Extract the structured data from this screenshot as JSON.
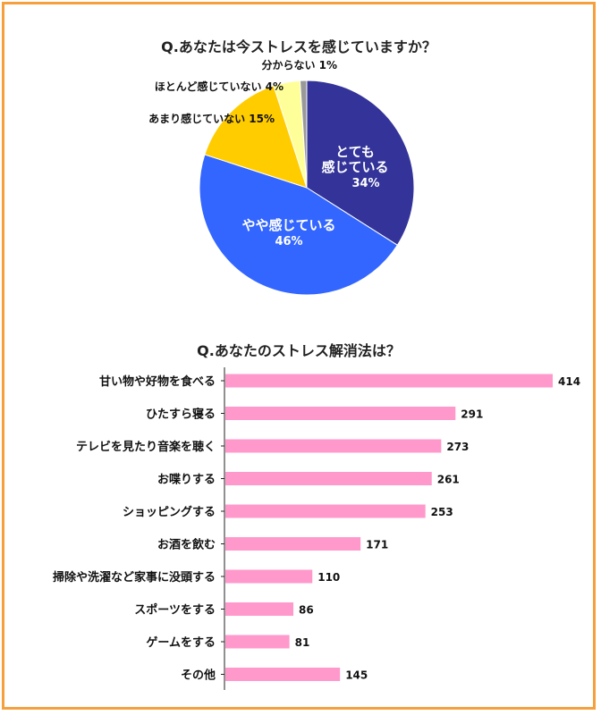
{
  "charts": {
    "pie_title": "Q.あなたは今ストレスを感じていますか？",
    "bar_title": "Q.あなたのストレス解消法は？"
  },
  "chart_data": [
    {
      "type": "pie",
      "title": "Q.あなたは今ストレスを感じていますか？",
      "slices": [
        {
          "label": "とても\n感じている",
          "value": 34,
          "pct_text": "34%",
          "color": "#333399",
          "label_pos": "inside"
        },
        {
          "label": "やや感じている",
          "value": 46,
          "pct_text": "46%",
          "color": "#3366ff",
          "label_pos": "inside"
        },
        {
          "label": "あまり感じていない",
          "value": 15,
          "pct_text": "15%",
          "color": "#ffcc00",
          "label_pos": "outside"
        },
        {
          "label": "ほとんど感じていない",
          "value": 4,
          "pct_text": "4%",
          "color": "#ffff99",
          "label_pos": "outside"
        },
        {
          "label": "分からない",
          "value": 1,
          "pct_text": "1%",
          "color": "#999999",
          "label_pos": "outside"
        }
      ]
    },
    {
      "type": "bar",
      "orientation": "horizontal",
      "title": "Q.あなたのストレス解消法は？",
      "categories": [
        "甘い物や好物を食べる",
        "ひたすら寝る",
        "テレビを見たり音楽を聴く",
        "お喋りする",
        "ショッピングする",
        "お酒を飲む",
        "掃除や洗濯など家事に没頭する",
        "スポーツをする",
        "ゲームをする",
        "その他"
      ],
      "values": [
        414,
        291,
        273,
        261,
        253,
        171,
        110,
        86,
        81,
        145
      ],
      "color": "#ff99cc",
      "xlim": [
        0,
        414
      ]
    }
  ]
}
